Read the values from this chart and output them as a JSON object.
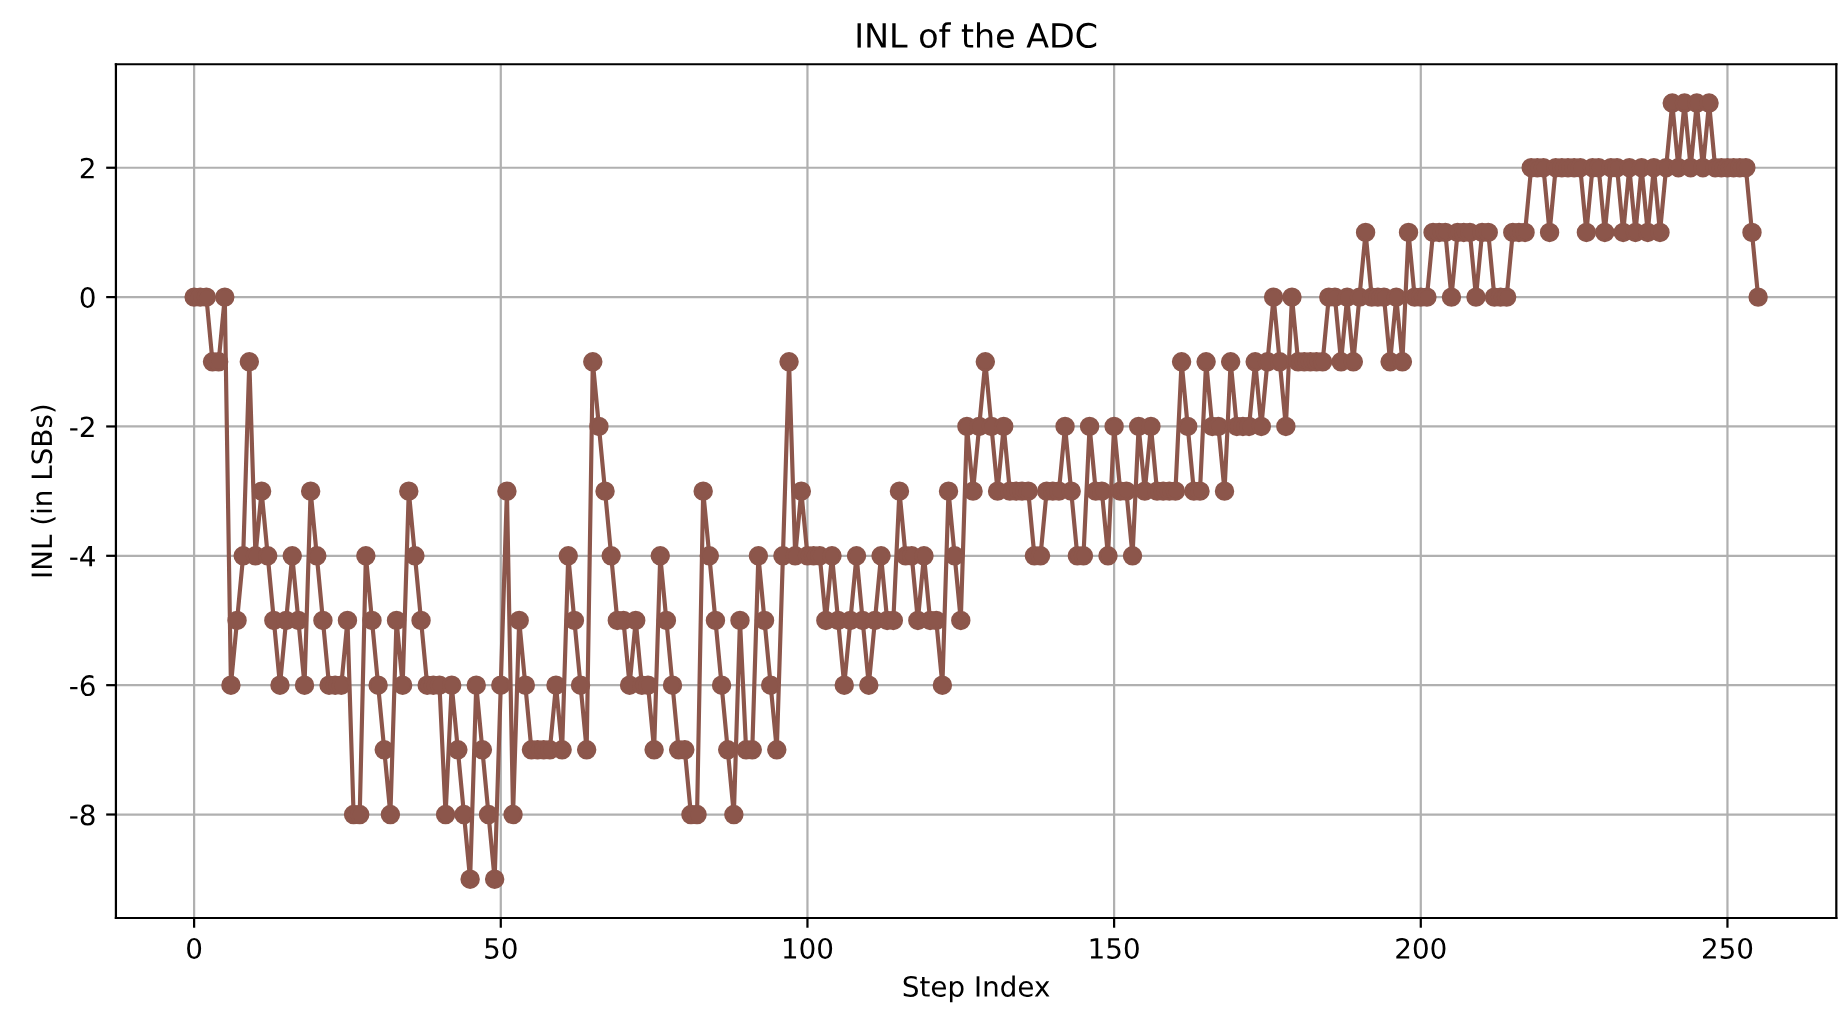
{
  "chart_data": {
    "type": "line",
    "title": "INL of the ADC",
    "xlabel": "Step Index",
    "ylabel": "INL (in LSBs)",
    "x": [
      0,
      1,
      2,
      3,
      4,
      5,
      6,
      7,
      8,
      9,
      10,
      11,
      12,
      13,
      14,
      15,
      16,
      17,
      18,
      19,
      20,
      21,
      22,
      23,
      24,
      25,
      26,
      27,
      28,
      29,
      30,
      31,
      32,
      33,
      34,
      35,
      36,
      37,
      38,
      39,
      40,
      41,
      42,
      43,
      44,
      45,
      46,
      47,
      48,
      49,
      50,
      51,
      52,
      53,
      54,
      55,
      56,
      57,
      58,
      59,
      60,
      61,
      62,
      63,
      64,
      65,
      66,
      67,
      68,
      69,
      70,
      71,
      72,
      73,
      74,
      75,
      76,
      77,
      78,
      79,
      80,
      81,
      82,
      83,
      84,
      85,
      86,
      87,
      88,
      89,
      90,
      91,
      92,
      93,
      94,
      95,
      96,
      97,
      98,
      99,
      100,
      101,
      102,
      103,
      104,
      105,
      106,
      107,
      108,
      109,
      110,
      111,
      112,
      113,
      114,
      115,
      116,
      117,
      118,
      119,
      120,
      121,
      122,
      123,
      124,
      125,
      126,
      127,
      128,
      129,
      130,
      131,
      132,
      133,
      134,
      135,
      136,
      137,
      138,
      139,
      140,
      141,
      142,
      143,
      144,
      145,
      146,
      147,
      148,
      149,
      150,
      151,
      152,
      153,
      154,
      155,
      156,
      157,
      158,
      159,
      160,
      161,
      162,
      163,
      164,
      165,
      166,
      167,
      168,
      169,
      170,
      171,
      172,
      173,
      174,
      175,
      176,
      177,
      178,
      179,
      180,
      181,
      182,
      183,
      184,
      185,
      186,
      187,
      188,
      189,
      190,
      191,
      192,
      193,
      194,
      195,
      196,
      197,
      198,
      199,
      200,
      201,
      202,
      203,
      204,
      205,
      206,
      207,
      208,
      209,
      210,
      211,
      212,
      213,
      214,
      215,
      216,
      217,
      218,
      219,
      220,
      221,
      222,
      223,
      224,
      225,
      226,
      227,
      228,
      229,
      230,
      231,
      232,
      233,
      234,
      235,
      236,
      237,
      238,
      239,
      240,
      241,
      242,
      243,
      244,
      245,
      246,
      247,
      248,
      249,
      250,
      251,
      252,
      253,
      254,
      255
    ],
    "series": [
      {
        "color": "#8c564b",
        "values": [
          0,
          0,
          0,
          -1,
          -1,
          0,
          -6,
          -5,
          -4,
          -1,
          -4,
          -3,
          -4,
          -5,
          -6,
          -5,
          -4,
          -5,
          -6,
          -3,
          -4,
          -5,
          -6,
          -6,
          -6,
          -5,
          -8,
          -8,
          -4,
          -5,
          -6,
          -7,
          -8,
          -5,
          -6,
          -3,
          -4,
          -5,
          -6,
          -6,
          -6,
          -8,
          -6,
          -7,
          -8,
          -9,
          -6,
          -7,
          -8,
          -9,
          -6,
          -3,
          -8,
          -5,
          -6,
          -7,
          -7,
          -7,
          -7,
          -6,
          -7,
          -4,
          -5,
          -6,
          -7,
          -1,
          -2,
          -3,
          -4,
          -5,
          -5,
          -6,
          -5,
          -6,
          -6,
          -7,
          -4,
          -5,
          -6,
          -7,
          -7,
          -8,
          -8,
          -3,
          -4,
          -5,
          -6,
          -7,
          -8,
          -5,
          -7,
          -7,
          -4,
          -5,
          -6,
          -7,
          -4,
          -1,
          -4,
          -3,
          -4,
          -4,
          -4,
          -5,
          -4,
          -5,
          -6,
          -5,
          -4,
          -5,
          -6,
          -5,
          -4,
          -5,
          -5,
          -3,
          -4,
          -4,
          -5,
          -4,
          -5,
          -5,
          -6,
          -3,
          -4,
          -5,
          -2,
          -3,
          -2,
          -1,
          -2,
          -3,
          -2,
          -3,
          -3,
          -3,
          -3,
          -4,
          -4,
          -3,
          -3,
          -3,
          -2,
          -3,
          -4,
          -4,
          -2,
          -3,
          -3,
          -4,
          -2,
          -3,
          -3,
          -4,
          -2,
          -3,
          -2,
          -3,
          -3,
          -3,
          -3,
          -1,
          -2,
          -3,
          -3,
          -1,
          -2,
          -2,
          -3,
          -1,
          -2,
          -2,
          -2,
          -1,
          -2,
          -1,
          0,
          -1,
          -2,
          0,
          -1,
          -1,
          -1,
          -1,
          -1,
          0,
          0,
          -1,
          0,
          -1,
          0,
          1,
          0,
          0,
          0,
          -1,
          0,
          -1,
          1,
          0,
          0,
          0,
          1,
          1,
          1,
          0,
          1,
          1,
          1,
          0,
          1,
          1,
          0,
          0,
          0,
          1,
          1,
          1,
          2,
          2,
          2,
          1,
          2,
          2,
          2,
          2,
          2,
          1,
          2,
          2,
          1,
          2,
          2,
          1,
          2,
          1,
          2,
          1,
          2,
          1,
          2,
          3,
          2,
          3,
          2,
          3,
          2,
          3,
          2,
          2,
          2,
          2,
          2,
          2,
          1,
          0
        ]
      }
    ],
    "marker": "circle",
    "line_style": "solid",
    "grid": true,
    "xlim": [
      -12.75,
      267.75
    ],
    "xticks": [
      0,
      50,
      100,
      150,
      200,
      250
    ],
    "ylim": [
      -9.6,
      3.6
    ],
    "yticks": [
      -8,
      -6,
      -4,
      -2,
      0,
      2
    ]
  }
}
